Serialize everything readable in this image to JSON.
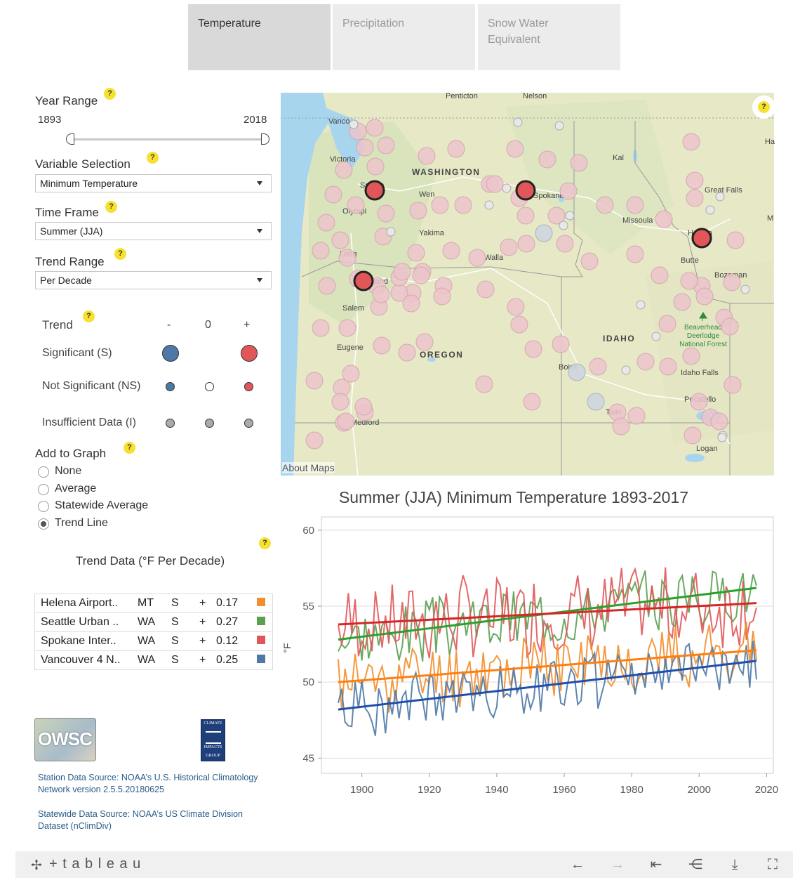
{
  "tabs": [
    {
      "label": "Temperature",
      "active": true
    },
    {
      "label": "Precipitation",
      "active": false
    },
    {
      "label": "Snow Water\nEquivalent",
      "active": false
    }
  ],
  "controls": {
    "year_range": {
      "label": "Year Range",
      "min": "1893",
      "max": "2018"
    },
    "variable_selection": {
      "label": "Variable Selection",
      "value": "Minimum Temperature"
    },
    "time_frame": {
      "label": "Time Frame",
      "value": "Summer (JJA)"
    },
    "trend_range": {
      "label": "Trend Range",
      "value": "Per Decade"
    }
  },
  "legend": {
    "title": "Trend",
    "minus": "-",
    "zero": "0",
    "plus": "+",
    "rows": [
      "Significant (S)",
      "Not Significant (NS)",
      "Insufficient Data (I)"
    ]
  },
  "add_to_graph": {
    "label": "Add to Graph",
    "options": [
      "None",
      "Average",
      "Statewide Average",
      "Trend Line"
    ],
    "selected": "Trend Line"
  },
  "trend_data": {
    "title": "Trend Data (°F Per Decade)",
    "rows": [
      {
        "station": "Helena Airport..",
        "state": "MT",
        "sig": "S",
        "sign": "+",
        "value": "0.17",
        "color": "#f28e2b"
      },
      {
        "station": "Seattle Urban ..",
        "state": "WA",
        "sig": "S",
        "sign": "+",
        "value": "0.27",
        "color": "#59a14f"
      },
      {
        "station": "Spokane Inter..",
        "state": "WA",
        "sig": "S",
        "sign": "+",
        "value": "0.12",
        "color": "#e15759"
      },
      {
        "station": "Vancouver 4 N..",
        "state": "WA",
        "sig": "S",
        "sign": "+",
        "value": "0.25",
        "color": "#4e79a7"
      }
    ]
  },
  "logos": {
    "owsc": "OWSC",
    "cig": [
      "CLIMATE",
      "IMPACTS",
      "GROUP"
    ]
  },
  "sources": [
    "Station Data Source: NOAA’s U.S. Historical Climatology Network version 2.5.5.20180625",
    "Statewide Data Source: NOAA’s US Climate Division Dataset (nClimDiv)"
  ],
  "map": {
    "attribution": "About Maps",
    "labels": [
      "Penticton",
      "Nelson",
      "Vanco",
      "Victoria",
      "WASHINGTON",
      "Wen",
      "Great Falls",
      "Olympi",
      "Yakima",
      "Missoula",
      "Long",
      "Walla",
      "Helena",
      "Butte",
      "Bozeman",
      "Salem",
      "Eugene",
      "OREGON",
      "IDAHO",
      "Beaverhead Deerlodge National Forest",
      "Boise",
      "Idaho Falls",
      "Pocatello",
      "Twin",
      "Medford",
      "Logan",
      "Ha",
      "M",
      "Kal",
      "Spokane",
      "Seattle",
      "Portland"
    ],
    "state_labels": {
      "wa": "WASHINGTON",
      "or": "OREGON",
      "id": "IDAHO"
    },
    "forest": "Beaverhead\nDeerlodge\nNational Forest"
  },
  "chart_data": {
    "type": "line",
    "title": "Summer (JJA) Minimum Temperature 1893-2017",
    "xlabel": "",
    "ylabel": "°F",
    "xlim": [
      1888,
      2022
    ],
    "ylim": [
      44,
      60.5
    ],
    "xticks": [
      1900,
      1920,
      1940,
      1960,
      1980,
      2000,
      2020
    ],
    "yticks": [
      45,
      50,
      55,
      60
    ],
    "series": [
      {
        "name": "Seattle Urban ..",
        "color": "#59a14f",
        "trend": [
          1893,
          52.8,
          2017,
          56.2
        ],
        "base": [
          52.8,
          56.2
        ],
        "noise": 1.2,
        "seed": 3
      },
      {
        "name": "Spokane Inter..",
        "color": "#e15759",
        "trend": [
          1893,
          53.8,
          2017,
          55.2
        ],
        "base": [
          53.8,
          55.2
        ],
        "noise": 1.6,
        "seed": 7
      },
      {
        "name": "Helena Airport..",
        "color": "#f28e2b",
        "trend": [
          1893,
          50.0,
          2017,
          52.1
        ],
        "base": [
          50.0,
          52.1
        ],
        "noise": 1.3,
        "seed": 11
      },
      {
        "name": "Vancouver 4 N..",
        "color": "#4e79a7",
        "trend": [
          1893,
          48.2,
          2017,
          51.4
        ],
        "base": [
          48.2,
          51.4
        ],
        "noise": 1.1,
        "seed": 19
      }
    ],
    "trend_colors": {
      "Seattle Urban ..": "#2ca02c",
      "Spokane Inter..": "#d62728",
      "Helena Airport..": "#ff7f0e",
      "Vancouver 4 N..": "#1f4fa8"
    }
  },
  "footer": {
    "brand": "+ t a b l e a u"
  }
}
